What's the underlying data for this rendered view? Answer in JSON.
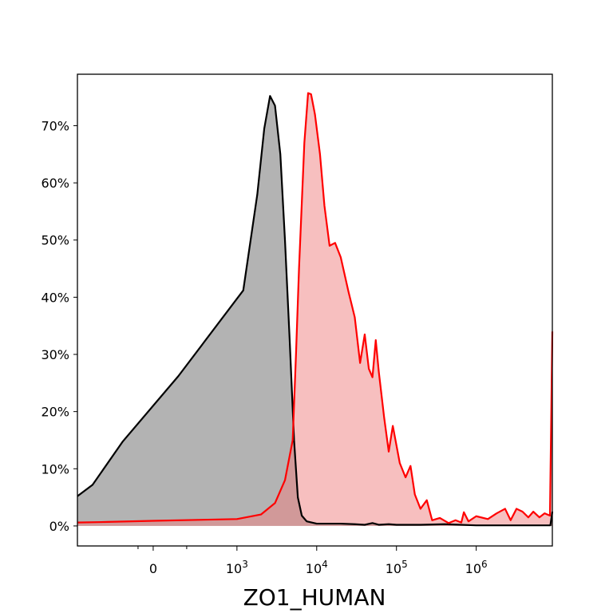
{
  "chart_data": {
    "type": "area",
    "title": "",
    "xlabel": "ZO1_HUMAN",
    "ylabel": "",
    "x_scale": "biexponential",
    "xlim": [
      -5000,
      9000000
    ],
    "ylim": [
      -0.035,
      0.79
    ],
    "x_ticks": [
      {
        "value": 0,
        "label": "0",
        "base": "0",
        "exp": ""
      },
      {
        "value": 1000,
        "label": "10^3",
        "base": "10",
        "exp": "3"
      },
      {
        "value": 10000,
        "label": "10^4",
        "base": "10",
        "exp": "4"
      },
      {
        "value": 100000,
        "label": "10^5",
        "base": "10",
        "exp": "5"
      },
      {
        "value": 1000000,
        "label": "10^6",
        "base": "10",
        "exp": "6"
      }
    ],
    "y_ticks": [
      {
        "value": 0.0,
        "label": "0%"
      },
      {
        "value": 0.1,
        "label": "10%"
      },
      {
        "value": 0.2,
        "label": "20%"
      },
      {
        "value": 0.3,
        "label": "30%"
      },
      {
        "value": 0.4,
        "label": "40%"
      },
      {
        "value": 0.5,
        "label": "50%"
      },
      {
        "value": 0.6,
        "label": "60%"
      },
      {
        "value": 0.7,
        "label": "70%"
      }
    ],
    "grid": false,
    "series": [
      {
        "line_color": "#000000",
        "fill_color": "#808080",
        "fill_opacity": 0.6,
        "points": [
          [
            -5000,
            0.052
          ],
          [
            -4000,
            0.072
          ],
          [
            -2000,
            0.148
          ],
          [
            300,
            0.262
          ],
          [
            1200,
            0.412
          ],
          [
            1800,
            0.58
          ],
          [
            2200,
            0.695
          ],
          [
            2600,
            0.752
          ],
          [
            3000,
            0.735
          ],
          [
            3500,
            0.65
          ],
          [
            4000,
            0.5
          ],
          [
            4600,
            0.32
          ],
          [
            5200,
            0.15
          ],
          [
            5800,
            0.05
          ],
          [
            6500,
            0.018
          ],
          [
            7500,
            0.008
          ],
          [
            10000,
            0.004
          ],
          [
            20000,
            0.004
          ],
          [
            30000,
            0.003
          ],
          [
            40000,
            0.002
          ],
          [
            50000,
            0.005
          ],
          [
            60000,
            0.002
          ],
          [
            80000,
            0.003
          ],
          [
            100000,
            0.002
          ],
          [
            200000,
            0.002
          ],
          [
            400000,
            0.003
          ],
          [
            1000000,
            0.001
          ],
          [
            4000000,
            0.001
          ],
          [
            8500000,
            0.001
          ],
          [
            9000000,
            0.025
          ]
        ]
      },
      {
        "line_color": "#ff0000",
        "fill_color": "#f08080",
        "fill_opacity": 0.5,
        "points": [
          [
            -5000,
            0.006
          ],
          [
            -3000,
            0.007
          ],
          [
            0,
            0.009
          ],
          [
            1000,
            0.012
          ],
          [
            2000,
            0.02
          ],
          [
            3000,
            0.04
          ],
          [
            4000,
            0.08
          ],
          [
            5000,
            0.15
          ],
          [
            5500,
            0.3
          ],
          [
            6000,
            0.45
          ],
          [
            7000,
            0.67
          ],
          [
            7800,
            0.757
          ],
          [
            8500,
            0.755
          ],
          [
            9500,
            0.72
          ],
          [
            11000,
            0.65
          ],
          [
            12500,
            0.56
          ],
          [
            14500,
            0.49
          ],
          [
            17000,
            0.495
          ],
          [
            20000,
            0.47
          ],
          [
            25000,
            0.41
          ],
          [
            30000,
            0.365
          ],
          [
            35000,
            0.285
          ],
          [
            40000,
            0.335
          ],
          [
            45000,
            0.275
          ],
          [
            50000,
            0.26
          ],
          [
            55000,
            0.325
          ],
          [
            60000,
            0.27
          ],
          [
            70000,
            0.19
          ],
          [
            80000,
            0.13
          ],
          [
            90000,
            0.175
          ],
          [
            110000,
            0.11
          ],
          [
            130000,
            0.085
          ],
          [
            150000,
            0.105
          ],
          [
            170000,
            0.055
          ],
          [
            200000,
            0.03
          ],
          [
            240000,
            0.045
          ],
          [
            280000,
            0.01
          ],
          [
            350000,
            0.014
          ],
          [
            450000,
            0.005
          ],
          [
            550000,
            0.01
          ],
          [
            650000,
            0.006
          ],
          [
            700000,
            0.024
          ],
          [
            800000,
            0.008
          ],
          [
            1000000,
            0.017
          ],
          [
            1400000,
            0.012
          ],
          [
            1800000,
            0.022
          ],
          [
            2300000,
            0.03
          ],
          [
            2700000,
            0.01
          ],
          [
            3200000,
            0.03
          ],
          [
            3800000,
            0.025
          ],
          [
            4500000,
            0.015
          ],
          [
            5200000,
            0.025
          ],
          [
            6200000,
            0.015
          ],
          [
            7200000,
            0.022
          ],
          [
            8400000,
            0.018
          ],
          [
            9000000,
            0.34
          ]
        ]
      }
    ]
  }
}
